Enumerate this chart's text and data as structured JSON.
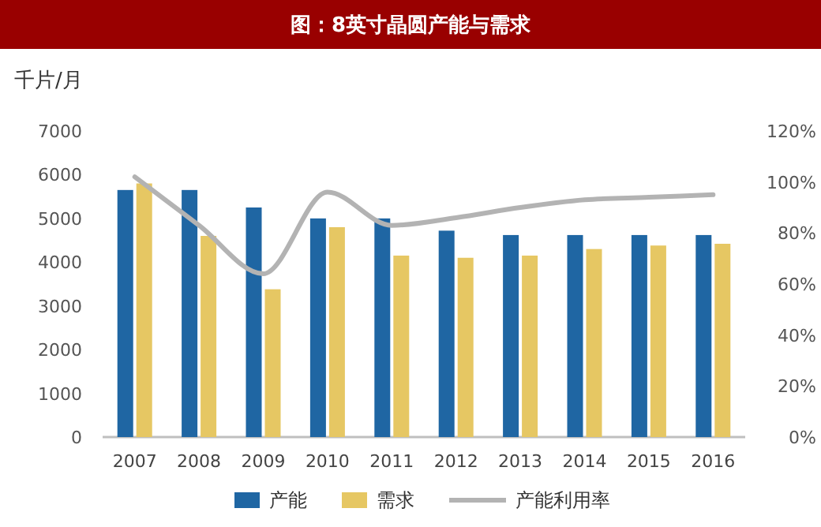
{
  "chart_data": {
    "type": "bar",
    "title": "图：8英寸晶圆产能与需求",
    "ylabel": "千片/月",
    "categories": [
      "2007",
      "2008",
      "2009",
      "2010",
      "2011",
      "2012",
      "2013",
      "2014",
      "2015",
      "2016"
    ],
    "series": [
      {
        "name": "产能",
        "color": "#1f66a3",
        "values": [
          5650,
          5650,
          5250,
          5000,
          5000,
          4720,
          4620,
          4620,
          4620,
          4620
        ]
      },
      {
        "name": "需求",
        "color": "#e6c763",
        "values": [
          5800,
          4600,
          3380,
          4800,
          4150,
          4100,
          4150,
          4300,
          4380,
          4420
        ]
      },
      {
        "name": "产能利用率",
        "type": "line",
        "axis": "y2",
        "color": "#b3b3b3",
        "values": [
          102,
          83,
          64,
          96,
          83,
          86,
          90,
          93,
          94,
          95
        ]
      }
    ],
    "ylim": [
      0,
      7000
    ],
    "yticks": [
      0,
      1000,
      2000,
      3000,
      4000,
      5000,
      6000,
      7000
    ],
    "y2lim": [
      0,
      120
    ],
    "y2ticks": [
      {
        "value": 0,
        "label": "0%"
      },
      {
        "value": 20,
        "label": "20%"
      },
      {
        "value": 40,
        "label": "40%"
      },
      {
        "value": 60,
        "label": "60%"
      },
      {
        "value": 80,
        "label": "80%"
      },
      {
        "value": 100,
        "label": "100%"
      },
      {
        "value": 120,
        "label": "120%"
      }
    ],
    "legend": "bottom"
  }
}
